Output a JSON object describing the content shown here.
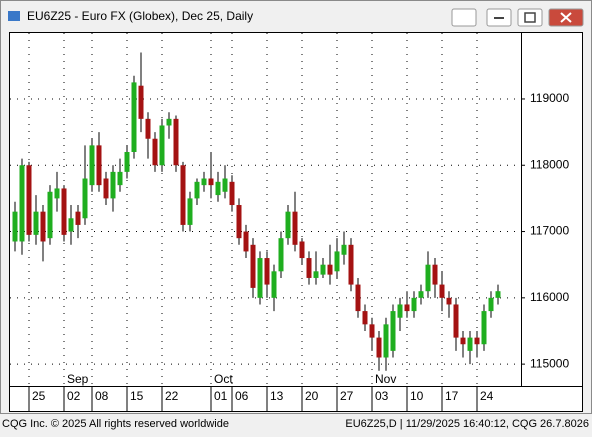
{
  "header": {
    "title": "EU6Z25 - Euro FX (Globex), Dec 25, Daily"
  },
  "footer": {
    "left": "CQG Inc. © 2025 All rights reserved worldwide",
    "right": "EU6Z25,D | 11/29/2025 16:40:12, CQG 26.7.8026"
  },
  "chart_data": {
    "type": "candlestick",
    "categories": [
      null,
      null,
      "25",
      null,
      null,
      null,
      null,
      "02",
      null,
      null,
      null,
      "08",
      null,
      null,
      null,
      null,
      "15",
      null,
      null,
      null,
      null,
      "22",
      null,
      null,
      null,
      null,
      null,
      null,
      "01",
      null,
      null,
      "06",
      null,
      null,
      null,
      null,
      "13",
      null,
      null,
      null,
      null,
      "20",
      null,
      null,
      null,
      null,
      "27",
      null,
      null,
      null,
      null,
      "03",
      null,
      null,
      null,
      null,
      "10",
      null,
      null,
      null,
      null,
      "17",
      null,
      null,
      null,
      null,
      "24",
      null,
      null,
      null
    ],
    "months": [
      null,
      null,
      null,
      null,
      null,
      null,
      null,
      "Sep",
      null,
      null,
      null,
      null,
      null,
      null,
      null,
      null,
      null,
      null,
      null,
      null,
      null,
      null,
      null,
      null,
      null,
      null,
      null,
      null,
      "Oct",
      null,
      null,
      null,
      null,
      null,
      null,
      null,
      null,
      null,
      null,
      null,
      null,
      null,
      null,
      null,
      null,
      null,
      null,
      null,
      null,
      null,
      null,
      "Nov",
      null,
      null,
      null,
      null,
      null,
      null,
      null,
      null,
      null,
      null,
      null,
      null,
      null,
      null,
      null,
      null,
      null,
      null
    ],
    "open": [
      116850,
      116850,
      118000,
      116950,
      117300,
      116900,
      117500,
      117650,
      117000,
      117300,
      117200,
      117700,
      118300,
      117800,
      117500,
      117700,
      117900,
      118200,
      119200,
      118700,
      118400,
      118000,
      118600,
      118700,
      118000,
      117100,
      117500,
      117700,
      117800,
      117550,
      117600,
      117750,
      117400,
      117000,
      116800,
      116000,
      116600,
      116000,
      116400,
      116900,
      117300,
      116850,
      116600,
      116300,
      116350,
      116500,
      116400,
      116650,
      116800,
      116200,
      115800,
      115600,
      115400,
      115100,
      115200,
      115700,
      115900,
      115800,
      116000,
      116100,
      116500,
      116200,
      116000,
      115900,
      115400,
      115200,
      115400,
      115300,
      115800,
      116000
    ],
    "high": [
      117450,
      118100,
      118050,
      117550,
      117400,
      117700,
      117900,
      117700,
      117400,
      117400,
      118300,
      118400,
      118500,
      117900,
      118000,
      118100,
      118300,
      119350,
      119700,
      118800,
      118500,
      118700,
      118800,
      118750,
      118050,
      117600,
      117800,
      117900,
      118200,
      117900,
      118000,
      117850,
      117500,
      117100,
      116900,
      116700,
      116700,
      116500,
      117000,
      117400,
      117600,
      116900,
      116700,
      116700,
      116600,
      116800,
      116900,
      117000,
      116900,
      116300,
      115900,
      115700,
      115500,
      115700,
      115900,
      116000,
      116100,
      116100,
      116200,
      116700,
      116600,
      116400,
      116100,
      116000,
      115500,
      115500,
      115500,
      115900,
      116100,
      116200
    ],
    "low": [
      116700,
      116650,
      116850,
      116800,
      116550,
      116800,
      117300,
      116850,
      116800,
      116900,
      117100,
      117600,
      117600,
      117400,
      117300,
      117600,
      117800,
      118100,
      118500,
      118100,
      117900,
      117900,
      118400,
      117900,
      117000,
      117000,
      117400,
      117600,
      117500,
      117450,
      117500,
      117300,
      116800,
      116600,
      116000,
      115900,
      116000,
      115800,
      116300,
      116800,
      116700,
      116500,
      116200,
      116200,
      116300,
      116200,
      116300,
      116500,
      116100,
      115700,
      115500,
      115200,
      114900,
      114900,
      115100,
      115500,
      115700,
      115700,
      115900,
      116000,
      116000,
      115800,
      115700,
      115200,
      115100,
      115000,
      115100,
      115200,
      115700,
      115900
    ],
    "close": [
      117300,
      118000,
      116950,
      117300,
      116850,
      117600,
      117650,
      116950,
      117200,
      117100,
      117800,
      118300,
      117700,
      117500,
      117900,
      117900,
      118200,
      119250,
      118700,
      118400,
      118000,
      118600,
      118700,
      118000,
      117100,
      117500,
      117750,
      117800,
      117700,
      117750,
      117800,
      117400,
      116900,
      116700,
      116150,
      116600,
      116200,
      116400,
      116900,
      117300,
      116800,
      116600,
      116300,
      116400,
      116500,
      116350,
      116700,
      116800,
      116200,
      115800,
      115600,
      115400,
      115100,
      115600,
      115800,
      115900,
      115800,
      116000,
      116100,
      116500,
      116200,
      116000,
      115900,
      115400,
      115300,
      115400,
      115300,
      115800,
      116000,
      116100
    ],
    "up_color": "#1fae1f",
    "down_color": "#a41212",
    "ylim": [
      114670,
      119995
    ],
    "yticks": [
      115000,
      116000,
      117000,
      118000,
      119000
    ],
    "grid": true
  }
}
